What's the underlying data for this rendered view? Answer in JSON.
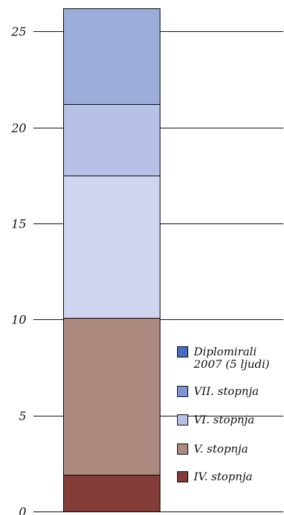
{
  "chart_data": {
    "type": "bar",
    "stacked": true,
    "categories": [
      ""
    ],
    "ylim": [
      0,
      26.2
    ],
    "yticks": [
      0,
      5,
      10,
      15,
      20,
      25
    ],
    "ytick_labels": [
      "0",
      "5",
      "10",
      "15",
      "20",
      "25"
    ],
    "grid": true,
    "legend_position": "right",
    "series": [
      {
        "name": "IV. stopnja",
        "values": [
          1.9
        ],
        "color": "#843c39"
      },
      {
        "name": "V. stopnja",
        "values": [
          8.2
        ],
        "color": "#ad8a80"
      },
      {
        "name": "VI. stopnja",
        "values": [
          7.4
        ],
        "color": "#cfd5ee"
      },
      {
        "name": "VII. stopnja",
        "values": [
          3.7
        ],
        "color": "#b7c0e6"
      },
      {
        "name": "Diplomirali 2007 (5 ljudi)",
        "values": [
          5.0
        ],
        "color": "#9dadd9"
      }
    ],
    "legend": [
      {
        "label_lines": [
          "Diplomirali",
          "2007 (5 ljudi)"
        ],
        "color": "#4a6cc4"
      },
      {
        "label_lines": [
          "VII. stopnja"
        ],
        "color": "#7f94d5"
      },
      {
        "label_lines": [
          "VI. stopnja"
        ],
        "color": "#b7c0e6"
      },
      {
        "label_lines": [
          "V. stopnja"
        ],
        "color": "#ad8a80"
      },
      {
        "label_lines": [
          "IV. stopnja"
        ],
        "color": "#843c39"
      }
    ]
  }
}
